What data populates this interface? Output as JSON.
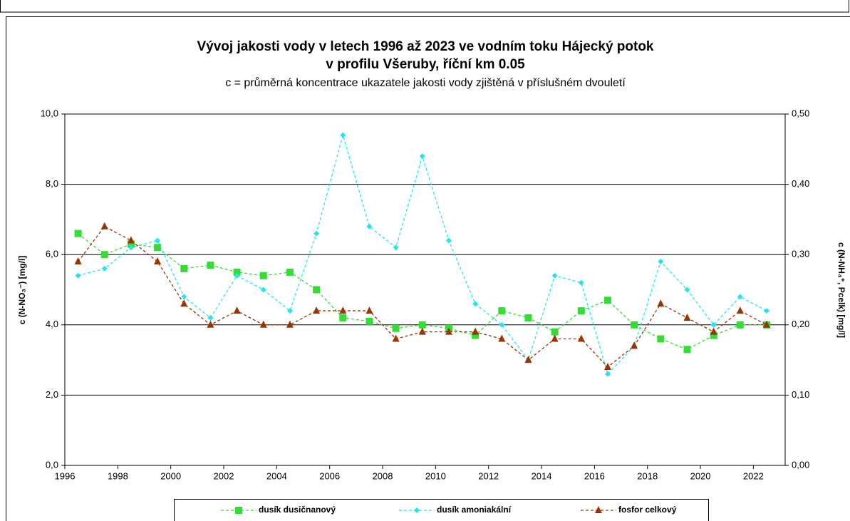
{
  "chart_data": {
    "type": "line",
    "title": "Vývoj jakosti vody v letech 1996 až 2023 ve vodním toku Hájecký potok",
    "title_line2": "v profilu Všeruby, říční km 0.05",
    "subtitle": "c = průměrná koncentrace ukazatele jakosti vody zjištěná v příslušném dvouletí",
    "y_label": "c (N-NO₃⁻) [mg/l]",
    "y2_label": "c (N-NH₄⁺, Pcelk) [mg/l]",
    "x": [
      1996.5,
      1997.5,
      1998.5,
      1999.5,
      2000.5,
      2001.5,
      2002.5,
      2003.5,
      2004.5,
      2005.5,
      2006.5,
      2007.5,
      2008.5,
      2009.5,
      2010.5,
      2011.5,
      2012.5,
      2013.5,
      2014.5,
      2015.5,
      2016.5,
      2017.5,
      2018.5,
      2019.5,
      2020.5,
      2021.5,
      2022.5
    ],
    "xlim": [
      1996,
      2023.2
    ],
    "xticks": [
      1996,
      1998,
      2000,
      2002,
      2004,
      2006,
      2008,
      2010,
      2012,
      2014,
      2016,
      2018,
      2020,
      2022
    ],
    "ylim": [
      0,
      10
    ],
    "yticks": [
      {
        "value": 0,
        "label": "0,0"
      },
      {
        "value": 2,
        "label": "2,0"
      },
      {
        "value": 4,
        "label": "4,0"
      },
      {
        "value": 6,
        "label": "6,0"
      },
      {
        "value": 8,
        "label": "8,0"
      },
      {
        "value": 10,
        "label": "10,0"
      }
    ],
    "y2lim": [
      0,
      0.5
    ],
    "y2ticks": [
      {
        "value": 0,
        "label": "0,00"
      },
      {
        "value": 0.1,
        "label": "0,10"
      },
      {
        "value": 0.2,
        "label": "0,20"
      },
      {
        "value": 0.3,
        "label": "0,30"
      },
      {
        "value": 0.4,
        "label": "0,40"
      },
      {
        "value": 0.5,
        "label": "0,50"
      }
    ],
    "grid": true,
    "legend": "bottom",
    "series": [
      {
        "name": "dusík dusičnanový",
        "color": "#33dd33",
        "marker": "square",
        "values": [
          6.6,
          6.0,
          6.3,
          6.2,
          5.6,
          5.7,
          5.5,
          5.4,
          5.5,
          5.0,
          4.2,
          4.1,
          3.9,
          4.0,
          3.9,
          3.7,
          4.4,
          4.2,
          3.8,
          4.4,
          4.7,
          4.0,
          3.6,
          3.3,
          3.7,
          4.0,
          4.0
        ]
      },
      {
        "name": "dusík amoniakální",
        "color": "#22e5ee",
        "marker": "diamond",
        "axis": "y2",
        "values": [
          0.27,
          0.28,
          0.31,
          0.32,
          0.24,
          0.21,
          0.27,
          0.25,
          0.22,
          0.33,
          0.47,
          0.34,
          0.31,
          0.44,
          0.32,
          0.23,
          0.2,
          0.15,
          0.27,
          0.26,
          0.13,
          0.17,
          0.29,
          0.25,
          0.2,
          0.24,
          0.22
        ]
      },
      {
        "name": "fosfor celkový",
        "color": "#993300",
        "marker": "triangle",
        "axis": "y2",
        "values": [
          0.29,
          0.34,
          0.32,
          0.29,
          0.23,
          0.2,
          0.22,
          0.2,
          0.2,
          0.22,
          0.22,
          0.22,
          0.18,
          0.19,
          0.19,
          0.19,
          0.18,
          0.15,
          0.18,
          0.18,
          0.14,
          0.17,
          0.23,
          0.21,
          0.19,
          0.22,
          0.2
        ]
      }
    ]
  }
}
